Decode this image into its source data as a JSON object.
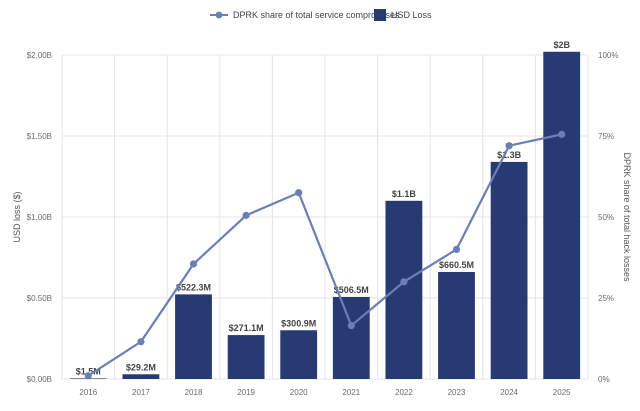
{
  "chart_data": {
    "type": "bar",
    "categories": [
      "2016",
      "2017",
      "2018",
      "2019",
      "2020",
      "2021",
      "2022",
      "2023",
      "2024",
      "2025"
    ],
    "series": [
      {
        "name": "USD Loss",
        "type": "bar",
        "axis": "left",
        "color": "#283a72",
        "values": [
          0.0015,
          0.0292,
          0.5223,
          0.2711,
          0.3009,
          0.5065,
          1.1,
          0.6605,
          1.34,
          2.02
        ],
        "labels": [
          "$1.5M",
          "$29.2M",
          "$522.3M",
          "$271.1M",
          "$300.9M",
          "$506.5M",
          "$1.1B",
          "$660.5M",
          "$1.3B",
          "$2B"
        ]
      },
      {
        "name": "DPRK share of total service compromises",
        "type": "line",
        "axis": "right",
        "color": "#6b7fb5",
        "values": [
          1,
          11.5,
          35.5,
          50.5,
          57.5,
          16.5,
          30,
          40,
          72,
          75.5
        ]
      }
    ],
    "ylabel": "USD loss ($)",
    "ylabel_right": "DPRK share of total hack losses",
    "ylim": [
      0,
      2.0
    ],
    "ylim_right": [
      0,
      100
    ],
    "yticks": [
      0,
      0.5,
      1.0,
      1.5,
      2.0
    ],
    "yticks_labels": [
      "$0.00B",
      "$0.50B",
      "$1.00B",
      "$1.50B",
      "$2.00B"
    ],
    "yticks_right": [
      0,
      25,
      50,
      75,
      100
    ],
    "yticks_right_labels": [
      "0%",
      "25%",
      "50%",
      "75%",
      "100%"
    ],
    "grid": true,
    "legend_position": "top-center"
  }
}
